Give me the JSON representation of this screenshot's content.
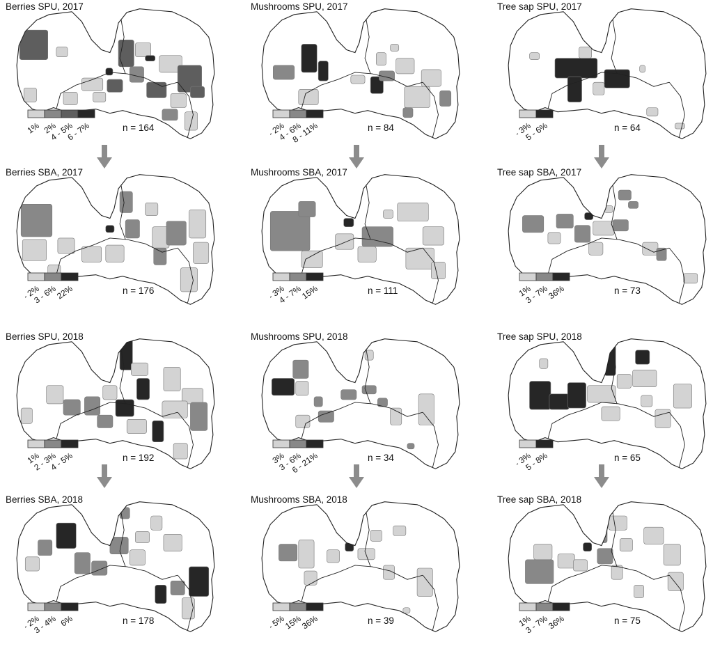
{
  "colors": {
    "light": "#d3d3d3",
    "medium": "#888888",
    "dark": "#5e5e5e",
    "darkest": "#262626",
    "border": "#222222",
    "arrow": "#8c8c8c"
  },
  "panels": [
    {
      "id": "berries-spu-2017",
      "title": "Berries SPU, 2017",
      "n": "n = 164",
      "legend": {
        "colors": [
          "light",
          "medium",
          "dark",
          "darkest"
        ],
        "labels": [
          "1%",
          "2%",
          "4 - 5%",
          "6 - 7%"
        ]
      }
    },
    {
      "id": "mushrooms-spu-2017",
      "title": "Mushrooms SPU, 2017",
      "n": "n = 84",
      "legend": {
        "colors": [
          "light",
          "medium",
          "darkest"
        ],
        "labels": [
          "1 - 2%",
          "4 - 6%",
          "8 - 11%"
        ]
      }
    },
    {
      "id": "tree-sap-spu-2017",
      "title": "Tree sap SPU, 2017",
      "n": "n = 64",
      "legend": {
        "colors": [
          "light",
          "darkest"
        ],
        "labels": [
          "2 - 3%",
          "5 - 6%"
        ]
      }
    },
    {
      "id": "berries-sba-2017",
      "title": "Berries SBA, 2017",
      "n": "n = 176",
      "legend": {
        "colors": [
          "light",
          "medium",
          "darkest"
        ],
        "labels": [
          "1 - 2%",
          "3 - 6%",
          "22%"
        ]
      }
    },
    {
      "id": "mushrooms-sba-2017",
      "title": "Mushrooms SBA, 2017",
      "n": "n = 111",
      "legend": {
        "colors": [
          "light",
          "medium",
          "darkest"
        ],
        "labels": [
          "1 - 3%",
          "4 - 7%",
          "15%"
        ]
      }
    },
    {
      "id": "tree-sap-sba-2017",
      "title": "Tree sap SBA, 2017",
      "n": "n = 73",
      "legend": {
        "colors": [
          "light",
          "medium",
          "darkest"
        ],
        "labels": [
          "1%",
          "3 - 7%",
          "36%"
        ]
      }
    },
    {
      "id": "berries-spu-2018",
      "title": "Berries SPU, 2018",
      "n": "n = 192",
      "legend": {
        "colors": [
          "light",
          "medium",
          "darkest"
        ],
        "labels": [
          "1%",
          "2 - 3%",
          "4 - 5%"
        ]
      }
    },
    {
      "id": "mushrooms-spu-2018",
      "title": "Mushrooms SPU, 2018",
      "n": "n = 34",
      "legend": {
        "colors": [
          "light",
          "medium",
          "darkest"
        ],
        "labels": [
          "3%",
          "3 - 6%",
          "6 - 21%"
        ]
      }
    },
    {
      "id": "tree-sap-spu-2018",
      "title": "Tree sap SPU, 2018",
      "n": "n = 65",
      "legend": {
        "colors": [
          "light",
          "darkest"
        ],
        "labels": [
          "2 - 3%",
          "5 - 8%"
        ]
      }
    },
    {
      "id": "berries-sba-2018",
      "title": "Berries SBA, 2018",
      "n": "n = 178",
      "legend": {
        "colors": [
          "light",
          "medium",
          "darkest"
        ],
        "labels": [
          "1 - 2%",
          "3 - 4%",
          "6%"
        ]
      }
    },
    {
      "id": "mushrooms-sba-2018",
      "title": "Mushrooms SBA, 2018",
      "n": "n = 39",
      "legend": {
        "colors": [
          "light",
          "medium",
          "darkest"
        ],
        "labels": [
          "3 - 5%",
          "15%",
          "36%"
        ]
      }
    },
    {
      "id": "tree-sap-sba-2018",
      "title": "Tree sap SBA, 2018",
      "n": "n = 75",
      "legend": {
        "colors": [
          "light",
          "medium",
          "darkest"
        ],
        "labels": [
          "1%",
          "3 - 7%",
          "36%"
        ]
      }
    }
  ]
}
